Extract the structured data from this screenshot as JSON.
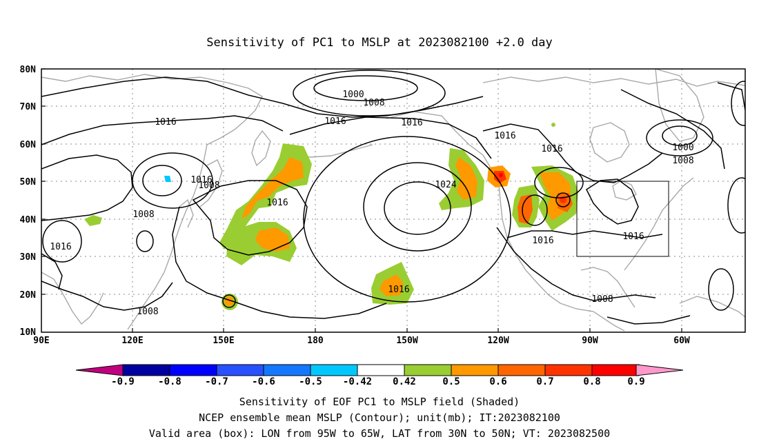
{
  "title": "Sensitivity of PC1 to MSLP at 2023082100 +2.0 day",
  "map": {
    "lat_labels": [
      "80N",
      "70N",
      "60N",
      "50N",
      "40N",
      "30N",
      "20N",
      "10N"
    ],
    "lon_labels": [
      "90E",
      "120E",
      "150E",
      "180",
      "150W",
      "120W",
      "90W",
      "60W"
    ],
    "lon_range": "90E to 45W",
    "lat_range": "10N to 80N",
    "grid": "dotted",
    "contour_labels": [
      "1000",
      "1008",
      "1016",
      "1016",
      "1016",
      "1016",
      "1016",
      "1000",
      "1008",
      "1008",
      "1024",
      "1016",
      "1016",
      "1016",
      "1016",
      "1016",
      "1008",
      "1008",
      "1008",
      "1016"
    ],
    "valid_box": {
      "lon": [
        -95,
        -65
      ],
      "lat": [
        30,
        50
      ]
    }
  },
  "colorbar": {
    "labels": [
      "-0.9",
      "-0.8",
      "-0.7",
      "-0.6",
      "-0.5",
      "-0.42",
      "0.42",
      "0.5",
      "0.6",
      "0.7",
      "0.8",
      "0.9"
    ],
    "colors": [
      "#c0007f",
      "#0000a0",
      "#0000ff",
      "#2850ff",
      "#1478ff",
      "#00c8ff",
      "#ffffff",
      "#9acd32",
      "#ff9900",
      "#ff6600",
      "#ff3300",
      "#ff0000",
      "#ff99cc"
    ]
  },
  "footer": {
    "line1": "Sensitivity of EOF PC1 to MSLP field (Shaded)",
    "line2": "NCEP ensemble mean MSLP (Contour); unit(mb); IT:2023082100",
    "line3": "Valid area (box): LON from 95W to 65W, LAT from 30N to 50N; VT: 2023082500"
  }
}
